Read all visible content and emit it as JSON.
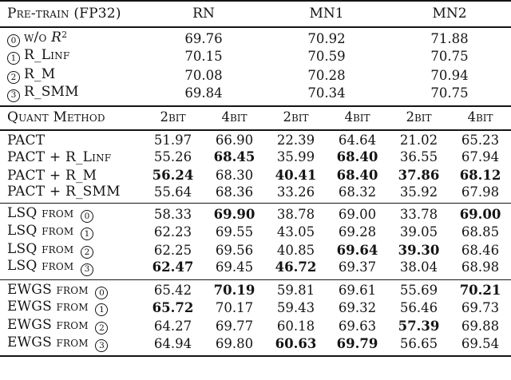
{
  "colors": {
    "ink": "#141414",
    "background": "#ffffff"
  },
  "table": {
    "pretrain": {
      "title": "Pre-train (FP32)",
      "model_columns": [
        "RN",
        "MN1",
        "MN2"
      ],
      "rows": [
        {
          "badge": "0",
          "label": "w/o",
          "math_var": "R",
          "math_sup": "2",
          "values": [
            "69.76",
            "70.92",
            "71.88"
          ]
        },
        {
          "badge": "1",
          "label": "R_Linf",
          "values": [
            "70.15",
            "70.59",
            "70.75"
          ]
        },
        {
          "badge": "2",
          "label": "R_M",
          "values": [
            "70.08",
            "70.28",
            "70.94"
          ]
        },
        {
          "badge": "3",
          "label": "R_SMM",
          "values": [
            "69.84",
            "70.34",
            "70.75"
          ]
        }
      ]
    },
    "quant": {
      "title": "Quant Method",
      "bit_columns": [
        "2bit",
        "4bit",
        "2bit",
        "4bit",
        "2bit",
        "4bit"
      ],
      "sections": [
        {
          "name": "PACT",
          "rows": [
            {
              "label": "PACT",
              "values": [
                "51.97",
                "66.90",
                "22.39",
                "64.64",
                "21.02",
                "65.23"
              ],
              "bold": [
                false,
                false,
                false,
                false,
                false,
                false
              ]
            },
            {
              "label": "PACT + R_Linf",
              "values": [
                "55.26",
                "68.45",
                "35.99",
                "68.40",
                "36.55",
                "67.94"
              ],
              "bold": [
                false,
                true,
                false,
                true,
                false,
                false
              ]
            },
            {
              "label": "PACT + R_M",
              "values": [
                "56.24",
                "68.30",
                "40.41",
                "68.40",
                "37.86",
                "68.12"
              ],
              "bold": [
                true,
                false,
                true,
                true,
                true,
                true
              ]
            },
            {
              "label": "PACT + R_SMM",
              "values": [
                "55.64",
                "68.36",
                "33.26",
                "68.32",
                "35.92",
                "67.98"
              ],
              "bold": [
                false,
                false,
                false,
                false,
                false,
                false
              ]
            }
          ]
        },
        {
          "name": "LSQ",
          "rows": [
            {
              "label": "LSQ from",
              "badge": "0",
              "values": [
                "58.33",
                "69.90",
                "38.78",
                "69.00",
                "33.78",
                "69.00"
              ],
              "bold": [
                false,
                true,
                false,
                false,
                false,
                true
              ]
            },
            {
              "label": "LSQ from",
              "badge": "1",
              "values": [
                "62.23",
                "69.55",
                "43.05",
                "69.28",
                "39.05",
                "68.85"
              ],
              "bold": [
                false,
                false,
                false,
                false,
                false,
                false
              ]
            },
            {
              "label": "LSQ from",
              "badge": "2",
              "values": [
                "62.25",
                "69.56",
                "40.85",
                "69.64",
                "39.30",
                "68.46"
              ],
              "bold": [
                false,
                false,
                false,
                true,
                true,
                false
              ]
            },
            {
              "label": "LSQ from",
              "badge": "3",
              "values": [
                "62.47",
                "69.45",
                "46.72",
                "69.37",
                "38.04",
                "68.98"
              ],
              "bold": [
                true,
                false,
                true,
                false,
                false,
                false
              ]
            }
          ]
        },
        {
          "name": "EWGS",
          "rows": [
            {
              "label": "EWGS from",
              "badge": "0",
              "values": [
                "65.42",
                "70.19",
                "59.81",
                "69.61",
                "55.69",
                "70.21"
              ],
              "bold": [
                false,
                true,
                false,
                false,
                false,
                true
              ]
            },
            {
              "label": "EWGS from",
              "badge": "1",
              "values": [
                "65.72",
                "70.17",
                "59.43",
                "69.32",
                "56.46",
                "69.73"
              ],
              "bold": [
                true,
                false,
                false,
                false,
                false,
                false
              ]
            },
            {
              "label": "EWGS from",
              "badge": "2",
              "values": [
                "64.27",
                "69.77",
                "60.18",
                "69.63",
                "57.39",
                "69.88"
              ],
              "bold": [
                false,
                false,
                false,
                false,
                true,
                false
              ]
            },
            {
              "label": "EWGS from",
              "badge": "3",
              "values": [
                "64.94",
                "69.80",
                "60.63",
                "69.79",
                "56.65",
                "69.54"
              ],
              "bold": [
                false,
                false,
                true,
                true,
                false,
                false
              ]
            }
          ]
        }
      ]
    }
  }
}
